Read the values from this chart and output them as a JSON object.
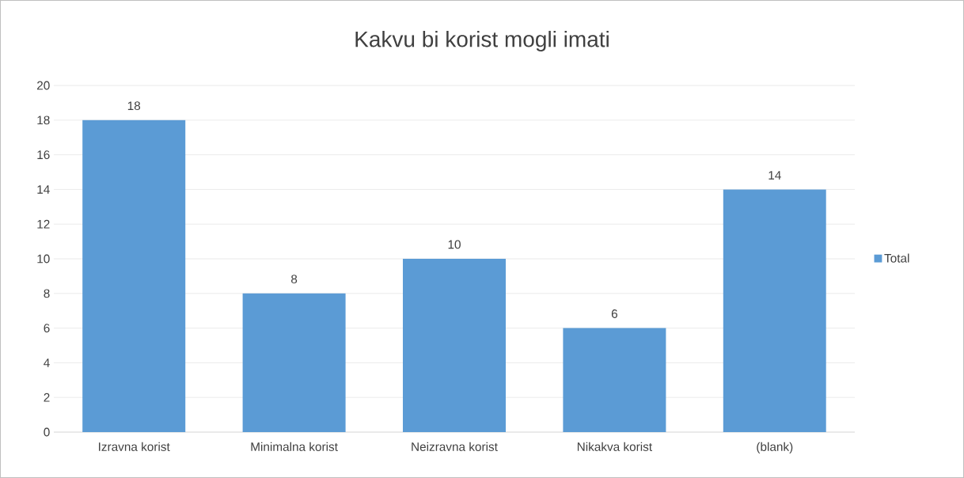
{
  "chart_data": {
    "type": "bar",
    "title": "Kakvu bi korist mogli imati",
    "categories": [
      "Izravna korist",
      "Minimalna korist",
      "Neizravna korist",
      "Nikakva korist",
      "(blank)"
    ],
    "series": [
      {
        "name": "Total",
        "color": "#5b9bd5",
        "values": [
          18,
          8,
          10,
          6,
          14
        ]
      }
    ],
    "ylim": [
      0,
      20
    ],
    "yticks": [
      0,
      2,
      4,
      6,
      8,
      10,
      12,
      14,
      16,
      18,
      20
    ],
    "grid": "y",
    "legend": "right",
    "data_labels": true
  }
}
